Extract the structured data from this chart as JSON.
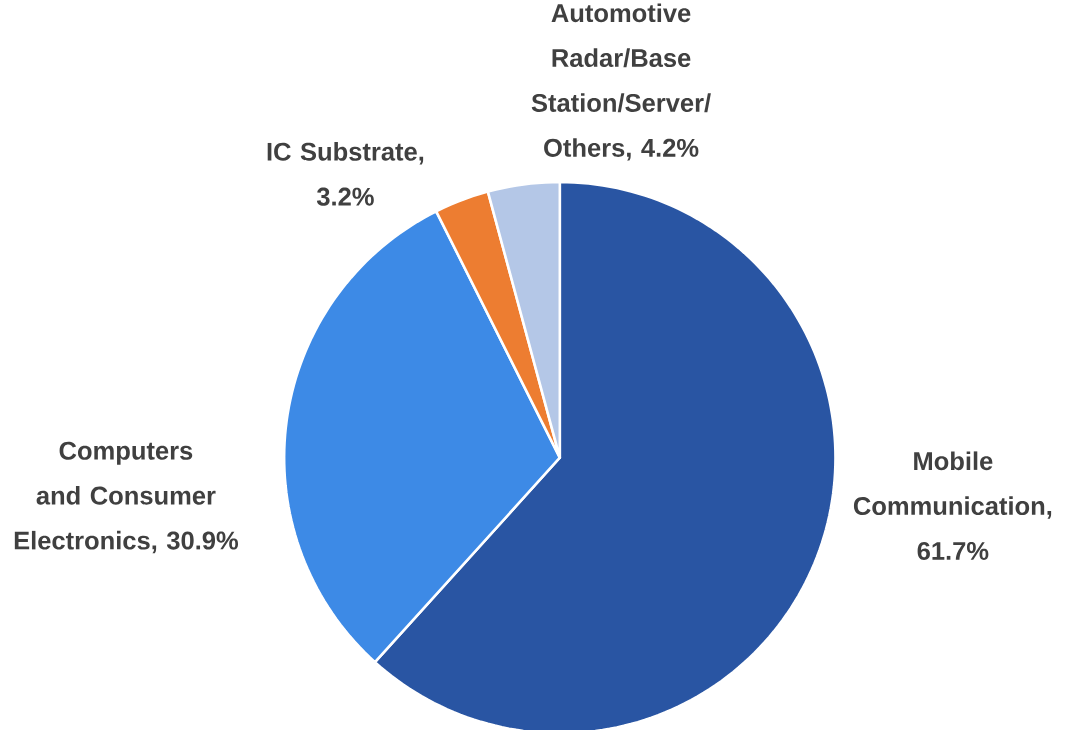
{
  "chart_data": {
    "type": "pie",
    "categories": [
      "Mobile Communication",
      "Computers and Consumer Electronics",
      "IC Substrate",
      "Automotive Radar/Base Station/Server/ Others"
    ],
    "values": [
      61.7,
      30.9,
      3.2,
      4.2
    ],
    "value_labels": [
      ", 61.7%",
      ", 30.9%",
      ", 3.2%",
      ", 4.2%"
    ],
    "colors": [
      "#2955a3",
      "#3d8ae6",
      "#ed7d31",
      "#b4c7e7"
    ]
  }
}
